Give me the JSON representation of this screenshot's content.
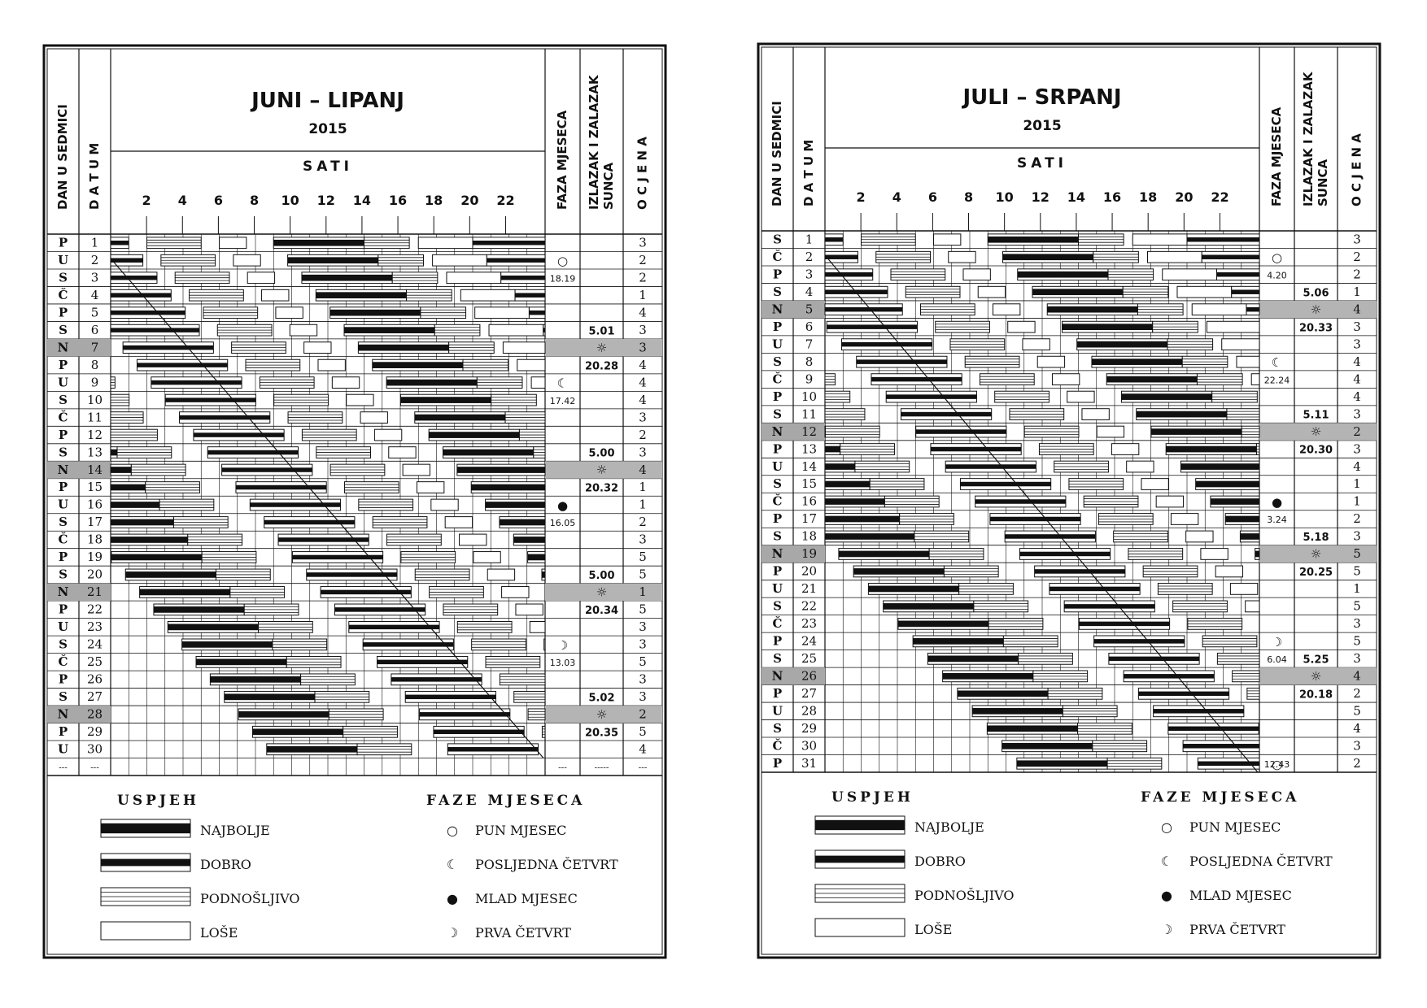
{
  "legend": {
    "success_title": "USPJEH",
    "moon_title": "FAZE MJESECA",
    "success": [
      "NAJBOLJE",
      "DOBRO",
      "PODNOŠLJIVO",
      "LOŠE"
    ],
    "moon": [
      "PUN MJESEC",
      "POSLJEDNA ČETVRT",
      "MLAD MJESEC",
      "PRVA ČETVRT"
    ]
  },
  "headers": {
    "day": "DAN U SEDMICI",
    "date": "DATUM",
    "hours": "SATI",
    "moon": "FAZA MJESECA",
    "sun": [
      "IZLAZAK I ZALAZAK",
      "SUNCA"
    ],
    "grade": "OCJENA",
    "hour_ticks": [
      2,
      4,
      6,
      8,
      10,
      12,
      14,
      16,
      18,
      20,
      22
    ]
  },
  "calendars": [
    {
      "title": "JUNI – LIPANJ",
      "year": "2015",
      "days": [
        "P",
        "U",
        "S",
        "Č",
        "P",
        "S",
        "N",
        "P",
        "U",
        "S",
        "Č",
        "P",
        "S",
        "N",
        "P",
        "U",
        "S",
        "Č",
        "P",
        "S",
        "N",
        "P",
        "U",
        "S",
        "Č",
        "P",
        "S",
        "N",
        "P",
        "U"
      ],
      "grades": [
        3,
        2,
        2,
        1,
        4,
        3,
        3,
        4,
        4,
        4,
        3,
        2,
        3,
        4,
        1,
        1,
        2,
        3,
        5,
        5,
        1,
        5,
        3,
        3,
        5,
        3,
        3,
        2,
        5,
        4
      ],
      "moon_phases": [
        {
          "day": 2,
          "symbol": "○",
          "time": "18.19"
        },
        {
          "day": 9,
          "symbol": "☾",
          "time": "17.42"
        },
        {
          "day": 16,
          "symbol": "●",
          "time": "16.05"
        },
        {
          "day": 24,
          "symbol": "☽",
          "time": "13.03"
        }
      ],
      "sun_times": [
        {
          "day": 6,
          "text": "5.01"
        },
        {
          "day": 7,
          "text": "☼"
        },
        {
          "day": 8,
          "text": "20.28"
        },
        {
          "day": 13,
          "text": "5.00"
        },
        {
          "day": 14,
          "text": "☼"
        },
        {
          "day": 15,
          "text": "20.32"
        },
        {
          "day": 20,
          "text": "5.00"
        },
        {
          "day": 21,
          "text": "☼"
        },
        {
          "day": 22,
          "text": "20.34"
        },
        {
          "day": 27,
          "text": "5.02"
        },
        {
          "day": 28,
          "text": "☼"
        },
        {
          "day": 29,
          "text": "20.35"
        }
      ],
      "footer_dashes": [
        "---",
        "---",
        "---",
        "-----",
        "---"
      ]
    },
    {
      "title": "JULI – SRPANJ",
      "year": "2015",
      "days": [
        "S",
        "Č",
        "P",
        "S",
        "N",
        "P",
        "U",
        "S",
        "Č",
        "P",
        "S",
        "N",
        "P",
        "U",
        "S",
        "Č",
        "P",
        "S",
        "N",
        "P",
        "U",
        "S",
        "Č",
        "P",
        "S",
        "N",
        "P",
        "U",
        "S",
        "Č",
        "P"
      ],
      "grades": [
        3,
        2,
        2,
        1,
        4,
        3,
        3,
        4,
        4,
        4,
        3,
        2,
        3,
        4,
        1,
        1,
        2,
        3,
        5,
        5,
        1,
        5,
        3,
        5,
        3,
        4,
        2,
        5,
        4,
        3,
        2
      ],
      "moon_phases": [
        {
          "day": 2,
          "symbol": "○",
          "time": "4.20"
        },
        {
          "day": 8,
          "symbol": "☾",
          "time": "22.24"
        },
        {
          "day": 16,
          "symbol": "●",
          "time": "3.24"
        },
        {
          "day": 24,
          "symbol": "☽",
          "time": "6.04"
        },
        {
          "day": 30,
          "symbol": "",
          "time": "12.43"
        },
        {
          "day": 31,
          "symbol": "○",
          "time": ""
        }
      ],
      "sun_times": [
        {
          "day": 4,
          "text": "5.06"
        },
        {
          "day": 5,
          "text": "☼"
        },
        {
          "day": 6,
          "text": "20.33"
        },
        {
          "day": 11,
          "text": "5.11"
        },
        {
          "day": 12,
          "text": "☼"
        },
        {
          "day": 13,
          "text": "20.30"
        },
        {
          "day": 18,
          "text": "5.18"
        },
        {
          "day": 19,
          "text": "☼"
        },
        {
          "day": 20,
          "text": "20.25"
        },
        {
          "day": 25,
          "text": "5.25"
        },
        {
          "day": 26,
          "text": "☼"
        },
        {
          "day": 27,
          "text": "20.18"
        }
      ],
      "footer_dashes": []
    }
  ]
}
